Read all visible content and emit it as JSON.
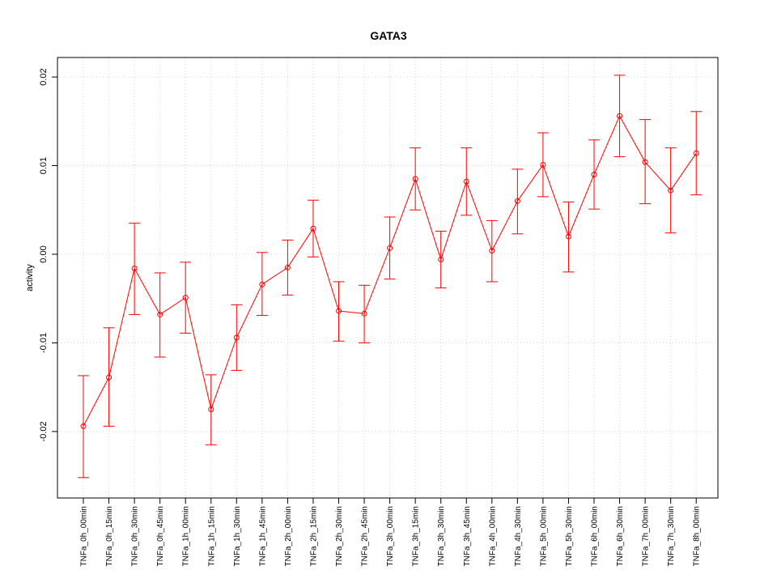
{
  "chart_data": {
    "type": "line",
    "title": "GATA3",
    "xlabel": "",
    "ylabel": "activity",
    "ylim": [
      -0.0275,
      0.0222
    ],
    "yticks": [
      -0.02,
      -0.01,
      0.0,
      0.01,
      0.02
    ],
    "ytick_labels": [
      "-0.02",
      "-0.01",
      "0.00",
      "0.01",
      "0.02"
    ],
    "grid": true,
    "line_color": "#ff0000",
    "categories": [
      "TNFa_0h_00min",
      "TNFa_0h_15min",
      "TNFa_0h_30min",
      "TNFa_0h_45min",
      "TNFa_1h_00min",
      "TNFa_1h_15min",
      "TNFa_1h_30min",
      "TNFa_1h_45min",
      "TNFa_2h_00min",
      "TNFa_2h_15min",
      "TNFa_2h_30min",
      "TNFa_2h_45min",
      "TNFa_3h_00min",
      "TNFa_3h_15min",
      "TNFa_3h_30min",
      "TNFa_3h_45min",
      "TNFa_4h_00min",
      "TNFa_4h_30min",
      "TNFa_5h_00min",
      "TNFa_5h_30min",
      "TNFa_6h_00min",
      "TNFa_6h_30min",
      "TNFa_7h_00min",
      "TNFa_7h_30min",
      "TNFa_8h_00min"
    ],
    "series": [
      {
        "values": [
          -0.0194,
          -0.0139,
          -0.0016,
          -0.0068,
          -0.0049,
          -0.0175,
          -0.0094,
          -0.0034,
          -0.0015,
          0.0029,
          -0.0064,
          -0.0067,
          0.0007,
          0.0085,
          -0.0006,
          0.0082,
          0.0004,
          0.006,
          0.0101,
          0.002,
          0.009,
          0.0156,
          0.0104,
          0.0072,
          0.0114
        ],
        "upper": [
          -0.0137,
          -0.0083,
          0.0035,
          -0.0021,
          -0.0009,
          -0.0136,
          -0.0057,
          0.0002,
          0.0016,
          0.0061,
          -0.0031,
          -0.0035,
          0.0042,
          0.012,
          0.0026,
          0.012,
          0.0038,
          0.0096,
          0.0137,
          0.0059,
          0.0129,
          0.0202,
          0.0152,
          0.012,
          0.0161
        ],
        "lower": [
          -0.0252,
          -0.0194,
          -0.0068,
          -0.0116,
          -0.0089,
          -0.0215,
          -0.0131,
          -0.0069,
          -0.0046,
          -0.0003,
          -0.0098,
          -0.01,
          -0.0028,
          0.005,
          -0.0038,
          0.0044,
          -0.0031,
          0.0023,
          0.0065,
          -0.002,
          0.0051,
          0.011,
          0.0057,
          0.0024,
          0.0067
        ]
      }
    ]
  }
}
